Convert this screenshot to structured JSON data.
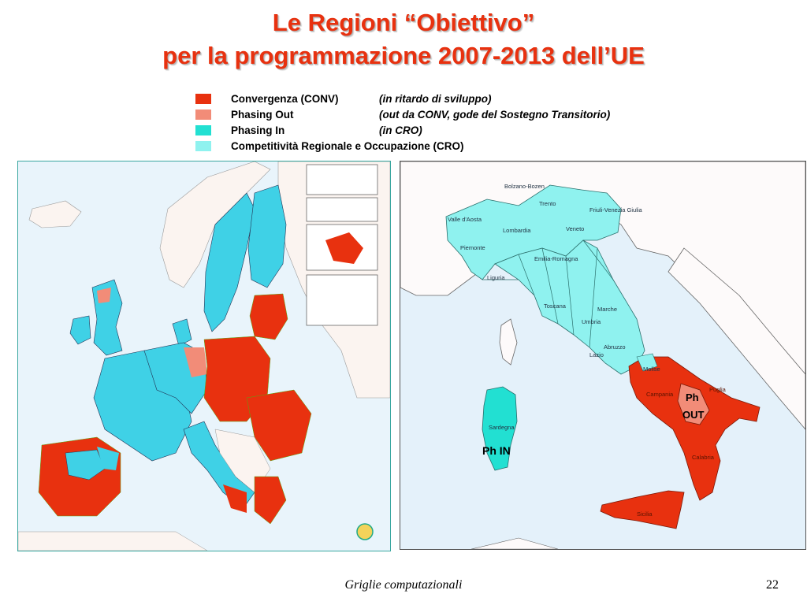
{
  "slide": {
    "title_line1": "Le Regioni “Obiettivo”",
    "title_line2": "per la programmazione 2007-2013 dell’UE"
  },
  "legend": {
    "items": [
      {
        "name": "Convergenza (CONV)",
        "note": "(in ritardo di sviluppo)",
        "color": "#e8310f"
      },
      {
        "name": "Phasing Out",
        "note": "(out da CONV, gode del Sostegno Transitorio)",
        "color": "#f28c78"
      },
      {
        "name": "Phasing In",
        "note": "(in CRO)",
        "color": "#22e0d2"
      },
      {
        "name": "Competitività Regionale e Occupazione (CRO)",
        "note": "",
        "color": "#8ff2ef"
      }
    ]
  },
  "map_italy": {
    "labels": {
      "ph_out_line1": "Ph",
      "ph_out_line2": "OUT",
      "ph_in": "Ph IN",
      "region_piemonte": "Piemonte",
      "region_lombardia": "Lombardia",
      "region_veneto": "Veneto",
      "region_friuli": "Friuli-Venezia Giulia",
      "region_trentino": "Trento",
      "region_bolzano": "Bolzano-Bozen",
      "region_valle": "Valle d'Aosta",
      "region_liguria": "Liguria",
      "region_emilia": "Emilia-Romagna",
      "region_toscana": "Toscana",
      "region_marche": "Marche",
      "region_umbria": "Umbria",
      "region_lazio": "Lazio",
      "region_abruzzo": "Abruzzo",
      "region_molise": "Molise",
      "region_campania": "Campania",
      "region_puglia": "Puglia",
      "region_calabria": "Calabria",
      "region_sicilia": "Sicilia",
      "region_sardegna": "Sardegna"
    },
    "colors": {
      "sea": "#e4f1fa",
      "land_other": "#fdfafa",
      "cro": "#8ff2ef",
      "phasing_in": "#22e0d2",
      "conv": "#e8310f",
      "phasing_out": "#f28c78",
      "border": "#2b6f6c"
    }
  },
  "map_eu": {
    "colors": {
      "sea": "#e9f4fb",
      "land_other": "#fbf4f0",
      "cro": "#3fd1e6",
      "phasing_in": "#22e0d2",
      "conv": "#e8310f",
      "phasing_out": "#f28c78"
    }
  },
  "footer": {
    "center": "Griglie computazionali",
    "page": "22"
  }
}
